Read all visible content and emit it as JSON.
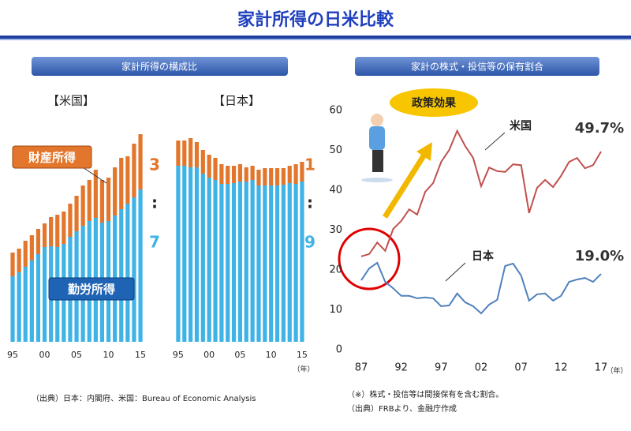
{
  "title": "家計所得の日米比較",
  "panels": [
    {
      "heading": "家計所得の構成比",
      "source": "（出典）日本：内閣府、米国：Bureau of Economic Analysis"
    },
    {
      "heading": "家計の株式・投信等の保有割合",
      "notes": [
        "（※）株式・投信等は間接保有を含む割合。",
        "（出典）FRBより、金融庁作成"
      ],
      "callout": "政策効果"
    }
  ],
  "chart_data": [
    {
      "type": "stacked_bar",
      "title": "【米国】",
      "categories": [
        "95",
        null,
        null,
        null,
        null,
        "00",
        null,
        null,
        null,
        null,
        "05",
        null,
        null,
        null,
        null,
        "10",
        null,
        null,
        null,
        null,
        "15"
      ],
      "series": [
        {
          "name": "勤労所得",
          "color": "#3fb3e6",
          "values": [
            83,
            88,
            95,
            103,
            111,
            120,
            121,
            120,
            124,
            133,
            140,
            147,
            153,
            157,
            151,
            153,
            160,
            168,
            175,
            183,
            193
          ]
        },
        {
          "name": "財産所得",
          "color": "#e2762c",
          "values": [
            30,
            30,
            33,
            32,
            32,
            30,
            37,
            41,
            41,
            42,
            45,
            51,
            52,
            61,
            54,
            55,
            61,
            65,
            60,
            68,
            70
          ]
        }
      ],
      "annotations": [
        "3",
        ":",
        "7"
      ]
    },
    {
      "type": "stacked_bar",
      "title": "【日本】",
      "x_unit": "（年）",
      "categories": [
        "95",
        null,
        null,
        null,
        null,
        "00",
        null,
        null,
        null,
        null,
        "05",
        null,
        null,
        null,
        null,
        "10",
        null,
        null,
        null,
        null,
        "15"
      ],
      "series": [
        {
          "color": "#3fb3e6",
          "values": [
            223,
            223,
            221,
            221,
            213,
            208,
            205,
            200,
            200,
            201,
            203,
            203,
            205,
            198,
            198,
            198,
            198,
            199,
            201,
            200,
            203
          ]
        },
        {
          "color": "#e2762c",
          "values": [
            32,
            32,
            37,
            32,
            30,
            29,
            28,
            25,
            23,
            22,
            22,
            18,
            18,
            20,
            22,
            22,
            22,
            21,
            22,
            25,
            25
          ]
        }
      ],
      "annotations": [
        "1",
        ":",
        "9"
      ]
    },
    {
      "type": "line",
      "x_unit": "（年）",
      "categories": [
        "87",
        null,
        null,
        null,
        null,
        "92",
        null,
        null,
        null,
        null,
        "97",
        null,
        null,
        null,
        null,
        "02",
        null,
        null,
        null,
        null,
        "07",
        null,
        null,
        null,
        null,
        "12",
        null,
        null,
        null,
        null,
        "17"
      ],
      "ylim": [
        0,
        60
      ],
      "yticks": [
        0,
        10,
        20,
        30,
        40,
        50,
        60
      ],
      "series": [
        {
          "name": "米国",
          "color": "#c0504d",
          "values": [
            23.4,
            24,
            26.9,
            24.8,
            30.3,
            32.3,
            35.2,
            33.9,
            39.6,
            41.8,
            47.1,
            50.1,
            54.9,
            51.1,
            48.1,
            41,
            45.7,
            44.8,
            44.6,
            46.5,
            46.3,
            34.3,
            40.6,
            42.6,
            40.8,
            43.6,
            47.1,
            48.1,
            45.5,
            46.3,
            49.7
          ],
          "value_labels": [
            null,
            null,
            null,
            null,
            null,
            null,
            null,
            null,
            null,
            null,
            null,
            null,
            null,
            null,
            null,
            null,
            null,
            null,
            null,
            null,
            null,
            null,
            null,
            null,
            null,
            null,
            null,
            null,
            null,
            null,
            "49.7%"
          ]
        },
        {
          "name": "日本",
          "color": "#4f81bd",
          "values": [
            17.4,
            20.4,
            21.8,
            17,
            15.4,
            13.5,
            13.5,
            12.9,
            13.1,
            12.9,
            10.9,
            11.1,
            14.1,
            11.9,
            10.9,
            9.1,
            11.3,
            12.5,
            21,
            21.6,
            18.6,
            12.3,
            13.9,
            14.1,
            12.3,
            13.5,
            17,
            17.6,
            18,
            17,
            19
          ],
          "value_labels": [
            null,
            null,
            null,
            null,
            null,
            null,
            null,
            null,
            null,
            null,
            null,
            null,
            null,
            null,
            null,
            null,
            null,
            null,
            null,
            null,
            null,
            null,
            null,
            null,
            null,
            null,
            null,
            null,
            null,
            null,
            "19.0%"
          ]
        }
      ]
    }
  ]
}
